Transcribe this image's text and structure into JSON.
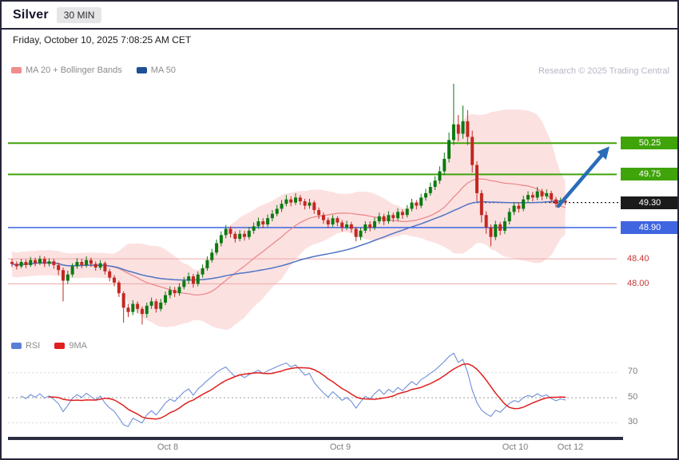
{
  "header": {
    "title": "Silver",
    "timeframe": "30 MIN",
    "datetime": "Friday, October 10, 2025 7:08:25 AM CET"
  },
  "attribution": "Research © 2025 Trading Central",
  "legend_main": [
    {
      "label": "MA 20 + Bollinger Bands",
      "color": "#f08c8c"
    },
    {
      "label": "MA 50",
      "color": "#1f4e96"
    }
  ],
  "legend_lower": [
    {
      "label": "RSI",
      "color": "#5b7fd6"
    },
    {
      "label": "9MA",
      "color": "#e01f1f"
    }
  ],
  "levels": [
    {
      "value": "50.25",
      "price": 50.25,
      "style": "resistance",
      "line_color": "#3fa30a",
      "label_bg": "#3fa30a"
    },
    {
      "value": "49.75",
      "price": 49.75,
      "style": "resistance",
      "line_color": "#3fa30a",
      "label_bg": "#3fa30a"
    },
    {
      "value": "49.30",
      "price": 49.3,
      "style": "last-price",
      "line_color": "#1b1b1b",
      "label_bg": "#1b1b1b"
    },
    {
      "value": "48.90",
      "price": 48.9,
      "style": "support",
      "line_color": "#4a6fe3",
      "label_bg": "#3f66e0"
    },
    {
      "value": "48.40",
      "price": 48.4,
      "style": "pivot",
      "line_color": "#efa6a6",
      "text_color": "#c63636"
    },
    {
      "value": "48.00",
      "price": 48.0,
      "style": "pivot",
      "line_color": "#efa6a6",
      "text_color": "#c63636"
    }
  ],
  "colors": {
    "candle_up": "#0c7a12",
    "candle_down": "#c32822",
    "bollinger_fill": "rgba(247,163,163,0.33)",
    "ma20": "#e98585",
    "ma50": "#4f74c4",
    "rsi_line": "#6f8fd9",
    "rsi_ma": "#e01f1f",
    "arrow": "#2a6cb8",
    "axis_bar": "#2b2d42"
  },
  "arrow_annotation": {
    "direction": "up-right",
    "target_level": "50.25",
    "color": "#2a6cb8"
  },
  "chart_data": {
    "type": "candlestick",
    "instrument": "Silver",
    "interval": "30 MIN",
    "price_range_visible": [
      47.15,
      51.3
    ],
    "x_axis_labels": [
      "Oct 8",
      "Oct 9",
      "Oct 10",
      "Oct 12"
    ],
    "overlays": [
      "MA 20",
      "Bollinger Bands",
      "MA 50"
    ],
    "key_levels": {
      "resistance": [
        50.25,
        49.75
      ],
      "support": [
        48.9
      ],
      "pivots": [
        48.4,
        48.0
      ],
      "last_price": 49.3
    },
    "lower_panel": {
      "type": "line",
      "indicators": [
        "RSI",
        "9MA"
      ],
      "range": [
        0,
        100
      ],
      "gridlines": [
        70,
        50,
        30
      ],
      "gridline_labels": [
        "70",
        "50",
        "30"
      ]
    },
    "candles_ohlc": [
      [
        48.35,
        48.4,
        48.27,
        48.32
      ],
      [
        48.32,
        48.36,
        48.23,
        48.28
      ],
      [
        48.28,
        48.4,
        48.25,
        48.35
      ],
      [
        48.35,
        48.39,
        48.25,
        48.3
      ],
      [
        48.3,
        48.43,
        48.27,
        48.38
      ],
      [
        48.38,
        48.42,
        48.28,
        48.33
      ],
      [
        48.33,
        48.45,
        48.3,
        48.4
      ],
      [
        48.4,
        48.44,
        48.27,
        48.32
      ],
      [
        48.32,
        48.41,
        48.28,
        48.36
      ],
      [
        48.36,
        48.4,
        48.24,
        48.3
      ],
      [
        48.3,
        48.34,
        48.14,
        48.22
      ],
      [
        48.22,
        48.26,
        47.72,
        48.05
      ],
      [
        48.05,
        48.21,
        48.0,
        48.15
      ],
      [
        48.15,
        48.33,
        48.11,
        48.28
      ],
      [
        48.28,
        48.41,
        48.24,
        48.35
      ],
      [
        48.35,
        48.4,
        48.25,
        48.3
      ],
      [
        48.3,
        48.44,
        48.26,
        48.38
      ],
      [
        48.38,
        48.42,
        48.27,
        48.32
      ],
      [
        48.32,
        48.36,
        48.21,
        48.26
      ],
      [
        48.26,
        48.38,
        48.22,
        48.33
      ],
      [
        48.33,
        48.36,
        48.15,
        48.2
      ],
      [
        48.2,
        48.24,
        48.04,
        48.1
      ],
      [
        48.1,
        48.14,
        47.96,
        48.02
      ],
      [
        48.02,
        48.05,
        47.79,
        47.85
      ],
      [
        47.85,
        47.88,
        47.38,
        47.62
      ],
      [
        47.62,
        47.68,
        47.47,
        47.55
      ],
      [
        47.55,
        47.74,
        47.5,
        47.68
      ],
      [
        47.68,
        47.72,
        47.53,
        47.6
      ],
      [
        47.6,
        47.64,
        47.35,
        47.52
      ],
      [
        47.52,
        47.7,
        47.46,
        47.65
      ],
      [
        47.65,
        47.78,
        47.6,
        47.72
      ],
      [
        47.72,
        47.76,
        47.54,
        47.6
      ],
      [
        47.6,
        47.76,
        47.56,
        47.7
      ],
      [
        47.7,
        47.88,
        47.66,
        47.82
      ],
      [
        47.82,
        47.96,
        47.77,
        47.9
      ],
      [
        47.9,
        47.95,
        47.79,
        47.85
      ],
      [
        47.85,
        48.01,
        47.81,
        47.95
      ],
      [
        47.95,
        48.11,
        47.91,
        48.05
      ],
      [
        48.05,
        48.18,
        48.0,
        48.12
      ],
      [
        48.12,
        48.16,
        47.94,
        48.0
      ],
      [
        48.0,
        48.2,
        47.96,
        48.15
      ],
      [
        48.15,
        48.31,
        48.1,
        48.25
      ],
      [
        48.25,
        48.44,
        48.21,
        48.38
      ],
      [
        48.38,
        48.56,
        48.34,
        48.5
      ],
      [
        48.5,
        48.71,
        48.46,
        48.65
      ],
      [
        48.65,
        48.84,
        48.6,
        48.78
      ],
      [
        48.78,
        48.94,
        48.73,
        48.88
      ],
      [
        48.88,
        48.92,
        48.74,
        48.8
      ],
      [
        48.8,
        48.84,
        48.66,
        48.72
      ],
      [
        48.72,
        48.86,
        48.68,
        48.8
      ],
      [
        48.8,
        48.85,
        48.69,
        48.75
      ],
      [
        48.75,
        48.91,
        48.71,
        48.85
      ],
      [
        48.85,
        48.98,
        48.8,
        48.92
      ],
      [
        48.92,
        49.06,
        48.88,
        49.0
      ],
      [
        49.0,
        49.05,
        48.89,
        48.95
      ],
      [
        48.95,
        49.11,
        48.91,
        49.05
      ],
      [
        49.05,
        49.18,
        49.0,
        49.12
      ],
      [
        49.12,
        49.26,
        49.08,
        49.2
      ],
      [
        49.2,
        49.34,
        49.15,
        49.28
      ],
      [
        49.28,
        49.42,
        49.24,
        49.35
      ],
      [
        49.35,
        49.4,
        49.24,
        49.3
      ],
      [
        49.3,
        49.45,
        49.26,
        49.38
      ],
      [
        49.38,
        49.42,
        49.26,
        49.32
      ],
      [
        49.32,
        49.36,
        49.19,
        49.25
      ],
      [
        49.25,
        49.36,
        49.2,
        49.3
      ],
      [
        49.3,
        49.33,
        49.12,
        49.18
      ],
      [
        49.18,
        49.22,
        49.04,
        49.1
      ],
      [
        49.1,
        49.14,
        48.96,
        49.02
      ],
      [
        49.02,
        49.06,
        48.89,
        48.95
      ],
      [
        48.95,
        49.1,
        48.91,
        49.05
      ],
      [
        49.05,
        49.08,
        48.92,
        48.98
      ],
      [
        48.98,
        49.02,
        48.84,
        48.9
      ],
      [
        48.9,
        49.01,
        48.86,
        48.95
      ],
      [
        48.95,
        48.99,
        48.82,
        48.88
      ],
      [
        48.88,
        48.91,
        48.68,
        48.75
      ],
      [
        48.75,
        48.9,
        48.7,
        48.85
      ],
      [
        48.85,
        49.0,
        48.81,
        48.95
      ],
      [
        48.95,
        49.0,
        48.84,
        48.9
      ],
      [
        48.9,
        49.06,
        48.86,
        49.0
      ],
      [
        49.0,
        49.14,
        48.96,
        49.08
      ],
      [
        49.08,
        49.12,
        48.94,
        49.0
      ],
      [
        49.0,
        49.16,
        48.96,
        49.1
      ],
      [
        49.1,
        49.14,
        48.99,
        49.05
      ],
      [
        49.05,
        49.21,
        49.01,
        49.15
      ],
      [
        49.15,
        49.19,
        49.04,
        49.1
      ],
      [
        49.1,
        49.26,
        49.06,
        49.2
      ],
      [
        49.2,
        49.36,
        49.16,
        49.3
      ],
      [
        49.3,
        49.34,
        49.19,
        49.25
      ],
      [
        49.25,
        49.44,
        49.21,
        49.38
      ],
      [
        49.38,
        49.52,
        49.33,
        49.45
      ],
      [
        49.45,
        49.62,
        49.41,
        49.55
      ],
      [
        49.55,
        49.72,
        49.5,
        49.65
      ],
      [
        49.65,
        49.88,
        49.6,
        49.8
      ],
      [
        49.8,
        50.1,
        49.74,
        50.0
      ],
      [
        50.0,
        50.42,
        49.94,
        50.3
      ],
      [
        50.3,
        51.2,
        50.22,
        50.55
      ],
      [
        50.55,
        50.7,
        50.28,
        50.4
      ],
      [
        50.4,
        50.85,
        50.32,
        50.6
      ],
      [
        50.6,
        50.78,
        50.22,
        50.35
      ],
      [
        50.35,
        50.45,
        49.78,
        49.9
      ],
      [
        49.9,
        49.96,
        49.32,
        49.45
      ],
      [
        49.45,
        49.5,
        48.98,
        49.1
      ],
      [
        49.1,
        49.16,
        48.8,
        48.9
      ],
      [
        48.9,
        48.95,
        48.6,
        48.75
      ],
      [
        48.75,
        49.01,
        48.7,
        48.95
      ],
      [
        48.95,
        48.99,
        48.78,
        48.85
      ],
      [
        48.85,
        49.06,
        48.8,
        49.0
      ],
      [
        49.0,
        49.21,
        48.95,
        49.15
      ],
      [
        49.15,
        49.31,
        49.1,
        49.25
      ],
      [
        49.25,
        49.3,
        49.14,
        49.2
      ],
      [
        49.2,
        49.41,
        49.16,
        49.35
      ],
      [
        49.35,
        49.48,
        49.3,
        49.42
      ],
      [
        49.42,
        49.47,
        49.32,
        49.38
      ],
      [
        49.38,
        49.55,
        49.34,
        49.48
      ],
      [
        49.48,
        49.52,
        49.34,
        49.4
      ],
      [
        49.4,
        49.51,
        49.36,
        49.45
      ],
      [
        49.45,
        49.49,
        49.29,
        49.35
      ],
      [
        49.35,
        49.39,
        49.22,
        49.28
      ],
      [
        49.28,
        49.38,
        49.24,
        49.33
      ],
      [
        49.33,
        49.37,
        49.26,
        49.3
      ]
    ]
  }
}
